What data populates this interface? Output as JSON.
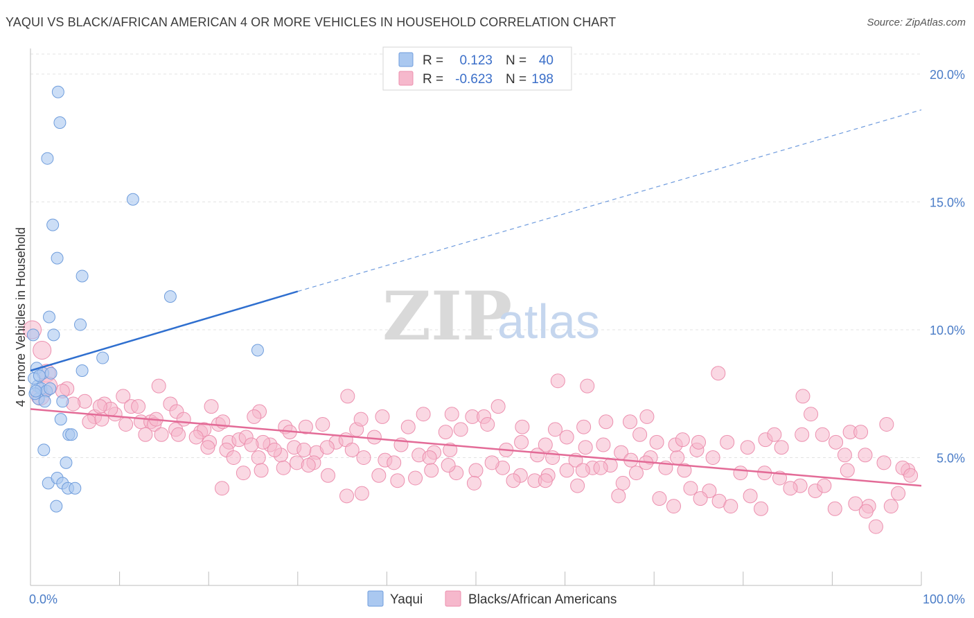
{
  "title": "YAQUI VS BLACK/AFRICAN AMERICAN 4 OR MORE VEHICLES IN HOUSEHOLD CORRELATION CHART",
  "source": "Source: ZipAtlas.com",
  "watermark": {
    "zip": "ZIP",
    "atlas": "atlas"
  },
  "colors": {
    "yaqui_fill": "#aac8f0",
    "yaqui_stroke": "#6f9ddc",
    "yaqui_line": "#2f6fcf",
    "black_fill": "#f6b8cc",
    "black_stroke": "#ec8fae",
    "black_line": "#e36b97",
    "tick_label": "#4a7cc7",
    "grid": "#e3e3e3"
  },
  "legend": {
    "rows": [
      {
        "r_label": "R =",
        "r_value": "0.123",
        "n_label": "N =",
        "n_value": "40"
      },
      {
        "r_label": "R =",
        "r_value": "-0.623",
        "n_label": "N =",
        "n_value": "198"
      }
    ]
  },
  "chart_data": {
    "type": "scatter",
    "title": "YAQUI VS BLACK/AFRICAN AMERICAN 4 OR MORE VEHICLES IN HOUSEHOLD CORRELATION CHART",
    "xlabel": "",
    "ylabel": "4 or more Vehicles in Household",
    "xlim": [
      0,
      100
    ],
    "ylim": [
      0,
      21
    ],
    "x_tick_labels": [
      "0.0%",
      "100.0%"
    ],
    "y_ticks": [
      5,
      10,
      15,
      20
    ],
    "y_tick_labels": [
      "5.0%",
      "10.0%",
      "15.0%",
      "20.0%"
    ],
    "grid": "horizontal dashed",
    "legend_position": "bottom",
    "series": [
      {
        "name": "Yaqui",
        "R": 0.123,
        "N": 40,
        "trend": {
          "x0": 0,
          "y0": 8.4,
          "x1": 30,
          "y1": 11.5,
          "dashed_to_x": 100,
          "dashed_to_y": 18.6
        },
        "points": [
          [
            3.1,
            19.3
          ],
          [
            3.3,
            18.1
          ],
          [
            1.9,
            16.7
          ],
          [
            11.5,
            15.1
          ],
          [
            2.5,
            14.1
          ],
          [
            3.0,
            12.8
          ],
          [
            5.8,
            12.1
          ],
          [
            15.7,
            11.3
          ],
          [
            2.1,
            10.5
          ],
          [
            5.6,
            10.2
          ],
          [
            2.6,
            9.8
          ],
          [
            0.3,
            9.8
          ],
          [
            25.5,
            9.2
          ],
          [
            8.1,
            8.9
          ],
          [
            0.7,
            8.5
          ],
          [
            1.4,
            8.3
          ],
          [
            2.3,
            8.3
          ],
          [
            5.8,
            8.4
          ],
          [
            0.8,
            7.8
          ],
          [
            1.2,
            7.7
          ],
          [
            1.8,
            7.6
          ],
          [
            0.9,
            7.3
          ],
          [
            1.6,
            7.2
          ],
          [
            3.6,
            7.2
          ],
          [
            0.5,
            7.5
          ],
          [
            3.4,
            6.5
          ],
          [
            4.3,
            5.9
          ],
          [
            4.6,
            5.9
          ],
          [
            1.5,
            5.3
          ],
          [
            4.0,
            4.8
          ],
          [
            2.0,
            4.0
          ],
          [
            3.0,
            4.2
          ],
          [
            3.6,
            4.0
          ],
          [
            4.2,
            3.8
          ],
          [
            5.0,
            3.8
          ],
          [
            2.9,
            3.1
          ],
          [
            0.4,
            8.1
          ],
          [
            1.0,
            8.2
          ],
          [
            0.6,
            7.6
          ],
          [
            2.2,
            7.7
          ]
        ]
      },
      {
        "name": "Blacks/African Americans",
        "R": -0.623,
        "N": 198,
        "trend": {
          "x0": 0,
          "y0": 6.9,
          "x1": 100,
          "y1": 3.9
        },
        "points": [
          [
            0.2,
            10.0
          ],
          [
            1.3,
            9.2
          ],
          [
            1.8,
            8.3
          ],
          [
            4.1,
            7.7
          ],
          [
            3.6,
            7.6
          ],
          [
            2.0,
            7.8
          ],
          [
            1.1,
            7.4
          ],
          [
            14.4,
            7.8
          ],
          [
            6.1,
            7.2
          ],
          [
            10.4,
            7.4
          ],
          [
            4.8,
            7.1
          ],
          [
            8.3,
            7.1
          ],
          [
            11.3,
            7.0
          ],
          [
            15.7,
            7.1
          ],
          [
            20.3,
            7.0
          ],
          [
            16.4,
            6.8
          ],
          [
            25.7,
            6.8
          ],
          [
            12.4,
            6.4
          ],
          [
            13.5,
            6.4
          ],
          [
            7.2,
            6.6
          ],
          [
            9.5,
            6.7
          ],
          [
            17.2,
            6.5
          ],
          [
            21.1,
            6.3
          ],
          [
            25.1,
            6.6
          ],
          [
            28.6,
            6.2
          ],
          [
            6.6,
            6.4
          ],
          [
            8.0,
            6.5
          ],
          [
            10.7,
            6.3
          ],
          [
            13.9,
            6.3
          ],
          [
            16.3,
            6.1
          ],
          [
            19.1,
            6.0
          ],
          [
            19.5,
            6.1
          ],
          [
            21.6,
            6.4
          ],
          [
            14.7,
            5.9
          ],
          [
            12.9,
            5.9
          ],
          [
            18.6,
            5.8
          ],
          [
            22.3,
            5.6
          ],
          [
            23.4,
            5.7
          ],
          [
            24.2,
            5.8
          ],
          [
            26.9,
            5.5
          ],
          [
            29.6,
            5.4
          ],
          [
            32.1,
            5.2
          ],
          [
            34.3,
            5.6
          ],
          [
            35.4,
            5.7
          ],
          [
            38.6,
            5.8
          ],
          [
            41.6,
            5.5
          ],
          [
            30.9,
            6.2
          ],
          [
            32.8,
            6.3
          ],
          [
            36.6,
            6.1
          ],
          [
            37.1,
            6.5
          ],
          [
            42.4,
            6.2
          ],
          [
            35.6,
            7.4
          ],
          [
            39.5,
            6.6
          ],
          [
            44.1,
            6.7
          ],
          [
            47.3,
            6.7
          ],
          [
            49.6,
            6.6
          ],
          [
            50.9,
            6.6
          ],
          [
            48.3,
            6.1
          ],
          [
            51.3,
            6.3
          ],
          [
            46.6,
            6.0
          ],
          [
            29.1,
            6.0
          ],
          [
            26.1,
            5.6
          ],
          [
            20.1,
            5.6
          ],
          [
            24.8,
            5.5
          ],
          [
            22.0,
            5.3
          ],
          [
            28.1,
            5.1
          ],
          [
            30.7,
            5.3
          ],
          [
            33.3,
            5.4
          ],
          [
            36.1,
            5.3
          ],
          [
            37.4,
            5.0
          ],
          [
            39.8,
            4.9
          ],
          [
            43.6,
            5.1
          ],
          [
            45.3,
            5.2
          ],
          [
            47.1,
            5.3
          ],
          [
            40.8,
            4.8
          ],
          [
            44.8,
            5.0
          ],
          [
            29.9,
            4.8
          ],
          [
            31.8,
            4.8
          ],
          [
            22.8,
            5.0
          ],
          [
            27.4,
            5.3
          ],
          [
            25.6,
            5.0
          ],
          [
            19.9,
            5.4
          ],
          [
            16.6,
            5.9
          ],
          [
            14.1,
            6.5
          ],
          [
            12.1,
            7.0
          ],
          [
            9.0,
            6.9
          ],
          [
            7.8,
            7.0
          ],
          [
            53.4,
            5.3
          ],
          [
            55.1,
            5.6
          ],
          [
            57.8,
            5.5
          ],
          [
            60.2,
            5.8
          ],
          [
            56.9,
            5.1
          ],
          [
            58.6,
            5.0
          ],
          [
            62.3,
            5.4
          ],
          [
            64.3,
            5.5
          ],
          [
            66.3,
            5.2
          ],
          [
            68.4,
            5.9
          ],
          [
            70.3,
            5.6
          ],
          [
            72.6,
            5.0
          ],
          [
            61.2,
            4.9
          ],
          [
            63.1,
            4.6
          ],
          [
            65.1,
            4.7
          ],
          [
            67.4,
            4.9
          ],
          [
            69.6,
            5.0
          ],
          [
            72.4,
            5.5
          ],
          [
            74.8,
            5.3
          ],
          [
            76.6,
            5.0
          ],
          [
            78.2,
            5.6
          ],
          [
            80.5,
            5.4
          ],
          [
            82.5,
            5.7
          ],
          [
            84.3,
            5.4
          ],
          [
            86.6,
            5.9
          ],
          [
            88.9,
            5.9
          ],
          [
            90.4,
            5.6
          ],
          [
            92.0,
            6.0
          ],
          [
            93.7,
            5.1
          ],
          [
            96.1,
            6.3
          ],
          [
            55.2,
            6.2
          ],
          [
            58.9,
            6.1
          ],
          [
            62.1,
            6.2
          ],
          [
            64.6,
            6.4
          ],
          [
            67.3,
            6.4
          ],
          [
            69.2,
            6.6
          ],
          [
            52.5,
            7.0
          ],
          [
            59.2,
            8.0
          ],
          [
            62.5,
            7.8
          ],
          [
            77.2,
            8.3
          ],
          [
            86.7,
            7.4
          ],
          [
            87.6,
            6.7
          ],
          [
            93.2,
            6.0
          ],
          [
            73.2,
            5.7
          ],
          [
            75.0,
            5.6
          ],
          [
            83.5,
            5.9
          ],
          [
            91.4,
            5.1
          ],
          [
            95.8,
            4.8
          ],
          [
            98.5,
            4.5
          ],
          [
            97.4,
            3.6
          ],
          [
            96.6,
            3.1
          ],
          [
            94.1,
            3.1
          ],
          [
            92.6,
            3.2
          ],
          [
            90.3,
            3.0
          ],
          [
            88.1,
            3.7
          ],
          [
            86.4,
            3.9
          ],
          [
            84.1,
            4.2
          ],
          [
            82.4,
            4.4
          ],
          [
            79.7,
            4.4
          ],
          [
            77.3,
            3.3
          ],
          [
            76.2,
            3.7
          ],
          [
            74.1,
            3.8
          ],
          [
            73.4,
            4.5
          ],
          [
            71.3,
            4.6
          ],
          [
            69.1,
            4.8
          ],
          [
            68.0,
            4.4
          ],
          [
            66.5,
            4.0
          ],
          [
            64.0,
            4.6
          ],
          [
            62.0,
            4.5
          ],
          [
            60.2,
            4.5
          ],
          [
            58.1,
            4.3
          ],
          [
            56.6,
            4.1
          ],
          [
            55.0,
            4.3
          ],
          [
            53.0,
            4.6
          ],
          [
            51.8,
            4.8
          ],
          [
            50.0,
            4.5
          ],
          [
            47.8,
            4.4
          ],
          [
            45.0,
            4.5
          ],
          [
            43.2,
            4.2
          ],
          [
            41.2,
            4.1
          ],
          [
            39.1,
            4.3
          ],
          [
            37.2,
            3.6
          ],
          [
            35.5,
            3.5
          ],
          [
            33.4,
            4.3
          ],
          [
            31.2,
            4.7
          ],
          [
            28.4,
            4.6
          ],
          [
            25.9,
            4.5
          ],
          [
            23.9,
            4.4
          ],
          [
            21.5,
            3.8
          ],
          [
            49.8,
            4.0
          ],
          [
            46.9,
            4.7
          ],
          [
            54.2,
            4.1
          ],
          [
            57.8,
            4.1
          ],
          [
            61.4,
            3.9
          ],
          [
            66.0,
            3.5
          ],
          [
            70.6,
            3.4
          ],
          [
            72.2,
            3.1
          ],
          [
            75.2,
            3.4
          ],
          [
            78.6,
            3.1
          ],
          [
            80.8,
            3.5
          ],
          [
            82.0,
            3.0
          ],
          [
            85.3,
            3.8
          ],
          [
            89.1,
            3.9
          ],
          [
            91.7,
            4.5
          ],
          [
            93.8,
            2.9
          ],
          [
            94.9,
            2.3
          ],
          [
            97.9,
            4.6
          ],
          [
            98.8,
            4.3
          ]
        ]
      }
    ]
  },
  "bottom_legend": [
    {
      "label": "Yaqui"
    },
    {
      "label": "Blacks/African Americans"
    }
  ]
}
